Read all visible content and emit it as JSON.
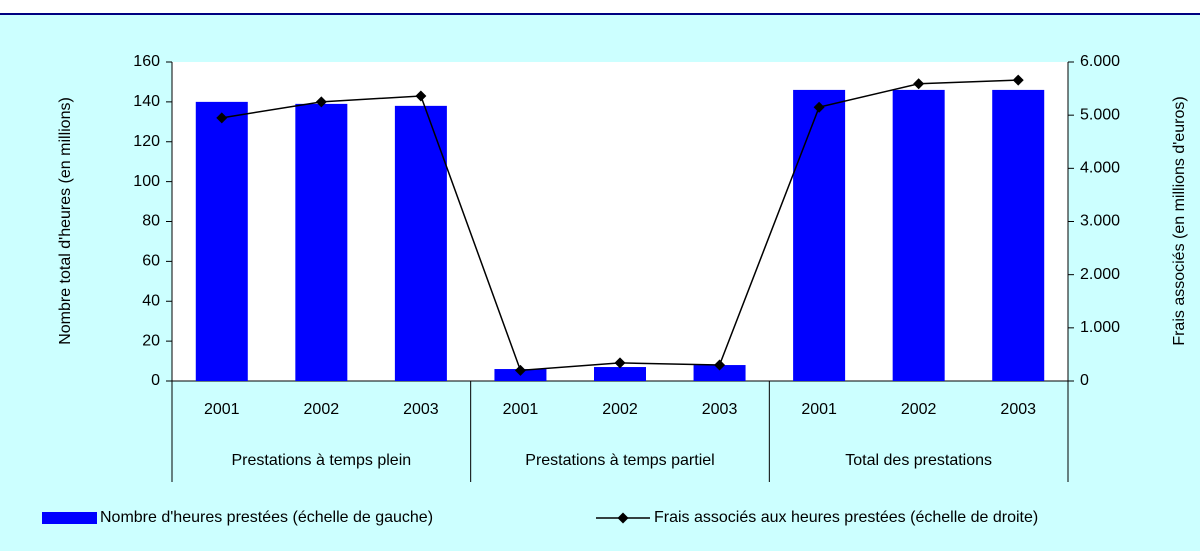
{
  "chart_data": {
    "type": "bar",
    "categories": [
      "2001",
      "2002",
      "2003",
      "2001",
      "2002",
      "2003",
      "2001",
      "2002",
      "2003"
    ],
    "groups": [
      "Prestations à temps plein",
      "Prestations à temps partiel",
      "Total des prestations"
    ],
    "ylabel": "Nombre total d'heures (en millions)",
    "y2label": "Frais associés (en millions d'euros)",
    "ylim": [
      0,
      160
    ],
    "yticks": [
      0,
      20,
      40,
      60,
      80,
      100,
      120,
      140,
      160
    ],
    "y2lim": [
      0,
      6000
    ],
    "y2ticks": [
      0,
      {
        "value": 1000,
        "label": "1.000"
      },
      {
        "value": 2000,
        "label": "2.000"
      },
      {
        "value": 3000,
        "label": "3.000"
      },
      {
        "value": 4000,
        "label": "4.000"
      },
      {
        "value": 5000,
        "label": "5.000"
      },
      {
        "value": 6000,
        "label": "6.000"
      }
    ],
    "grid": false,
    "legend": "bottom",
    "series": [
      {
        "name": "Nombre d'heures prestées (échelle de gauche)",
        "type": "bar",
        "color": "#0000ff",
        "values": [
          140,
          139,
          138,
          6,
          7,
          8,
          146,
          146,
          146
        ]
      },
      {
        "name": "Frais associés aux heures prestées (échelle de droite)",
        "type": "line",
        "axis": "y2",
        "color": "#000000",
        "values": [
          4950,
          5250,
          5360,
          200,
          340,
          300,
          5150,
          5590,
          5660
        ]
      }
    ]
  }
}
